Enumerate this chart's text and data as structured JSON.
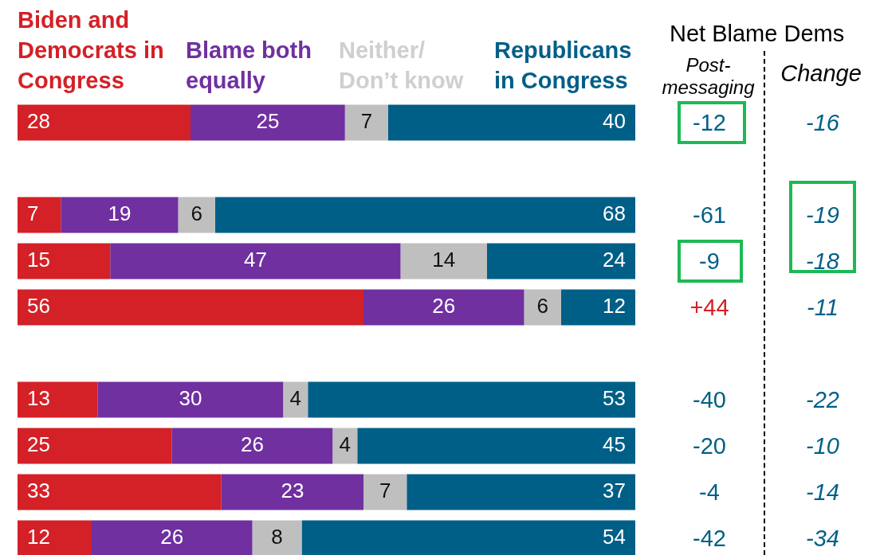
{
  "chart_data": [
    {
      "type": "bar",
      "orientation": "horizontal",
      "stacked": true,
      "data_labels": true,
      "xlim": [
        0,
        100
      ],
      "categories": [
        null
      ],
      "series": [
        {
          "name": "Biden and Democrats in Congress",
          "color": "#d42027",
          "values": [
            28
          ]
        },
        {
          "name": "Blame both equally",
          "color": "#7030a0",
          "values": [
            25
          ]
        },
        {
          "name": "Neither/ Don’t know",
          "color": "#bfbfbf",
          "values": [
            7
          ]
        },
        {
          "name": "Republicans in Congress",
          "color": "#005f87",
          "values": [
            40
          ]
        }
      ],
      "annotations": [
        "Net Blame Dems",
        "Post-messaging",
        "Change",
        "-12",
        "-16"
      ]
    },
    {
      "type": "bar",
      "orientation": "horizontal",
      "stacked": true,
      "data_labels": true,
      "xlim": [
        0,
        100
      ],
      "categories": [
        null,
        null,
        null
      ],
      "series": [
        {
          "color": "#d42027",
          "values": [
            7,
            15,
            56
          ]
        },
        {
          "color": "#7030a0",
          "values": [
            19,
            47,
            26
          ]
        },
        {
          "color": "#bfbfbf",
          "values": [
            6,
            14,
            6
          ]
        },
        {
          "color": "#005f87",
          "values": [
            68,
            24,
            12
          ]
        }
      ],
      "annotations": [
        "-61",
        "-19",
        "-9",
        "-18",
        "+44",
        "-11"
      ]
    },
    {
      "type": "bar",
      "orientation": "horizontal",
      "stacked": true,
      "data_labels": true,
      "xlim": [
        0,
        100
      ],
      "categories": [
        null,
        null,
        null,
        null
      ],
      "series": [
        {
          "color": "#d42027",
          "values": [
            13,
            25,
            33,
            12
          ]
        },
        {
          "color": "#7030a0",
          "values": [
            30,
            26,
            23,
            26
          ]
        },
        {
          "color": "#bfbfbf",
          "values": [
            4,
            4,
            7,
            8
          ]
        },
        {
          "color": "#005f87",
          "values": [
            53,
            45,
            37,
            54
          ]
        }
      ],
      "annotations": [
        "-40",
        "-22",
        "-20",
        "-10",
        "-4",
        "-14",
        "-42",
        "-34"
      ]
    }
  ]
}
